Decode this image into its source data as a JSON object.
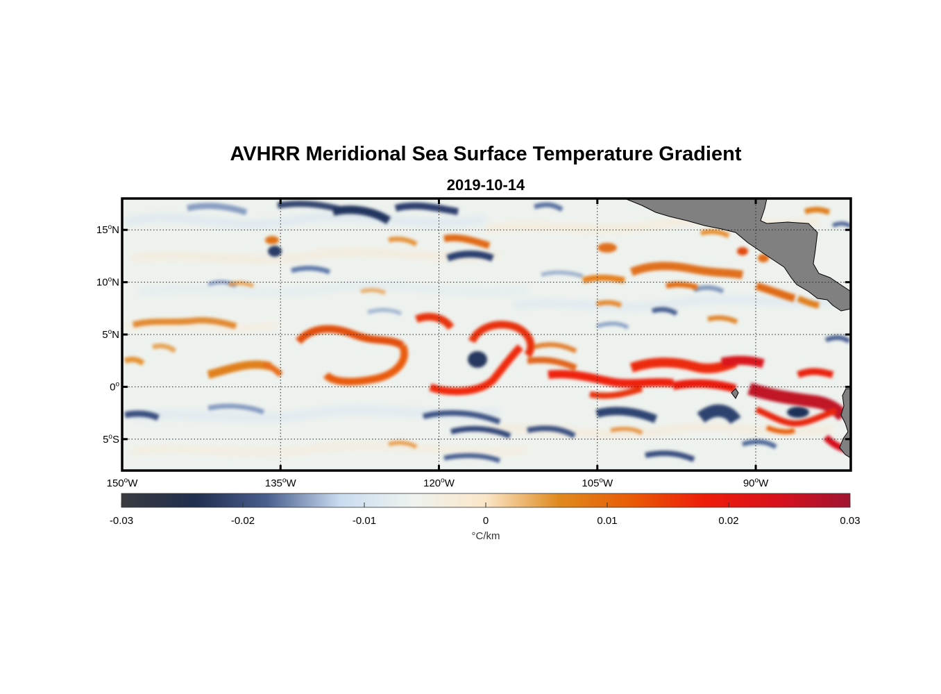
{
  "title": "AVHRR Meridional Sea Surface Temperature Gradient",
  "subtitle": "2019-10-14",
  "map": {
    "lon_range": [
      -150,
      -81
    ],
    "lat_range": [
      -8,
      18
    ],
    "land_color": "#808080",
    "gridlines": "dotted",
    "lat_ticks": [
      {
        "value": 15,
        "num": "15",
        "sup": "o",
        "hem": "N"
      },
      {
        "value": 10,
        "num": "10",
        "sup": "o",
        "hem": "N"
      },
      {
        "value": 5,
        "num": "5",
        "sup": "o",
        "hem": "N"
      },
      {
        "value": 0,
        "num": "0",
        "sup": "o",
        "hem": ""
      },
      {
        "value": -5,
        "num": "5",
        "sup": "o",
        "hem": "S"
      }
    ],
    "lon_ticks": [
      {
        "value": -150,
        "num": "150",
        "sup": "o",
        "hem": "W"
      },
      {
        "value": -135,
        "num": "135",
        "sup": "o",
        "hem": "W"
      },
      {
        "value": -120,
        "num": "120",
        "sup": "o",
        "hem": "W"
      },
      {
        "value": -105,
        "num": "105",
        "sup": "o",
        "hem": "W"
      },
      {
        "value": -90,
        "num": "90",
        "sup": "o",
        "hem": "W"
      }
    ]
  },
  "colorbar": {
    "range": [
      -0.03,
      0.03
    ],
    "ticks": [
      "-0.03",
      "-0.02",
      "-0.01",
      "0",
      "0.01",
      "0.02",
      "0.03"
    ],
    "unit_symbol": "°",
    "unit": "C/km",
    "colors": [
      "#3a3c40",
      "#1f2d4e",
      "#4a5f8e",
      "#c9dcf0",
      "#eef3ef",
      "#fbe6c8",
      "#df8a1e",
      "#e95b06",
      "#ee1c0a",
      "#d8101c",
      "#a01432"
    ]
  },
  "features": [
    {
      "type": "positive",
      "lon": -122.5,
      "lat": 1.8,
      "strength": 0.012
    },
    {
      "type": "positive",
      "lon": -126.5,
      "lat": 4.6,
      "strength": 0.011
    },
    {
      "type": "positive",
      "lon": -117.5,
      "lat": 5.8,
      "strength": 0.015
    },
    {
      "type": "positive",
      "lon": -114.5,
      "lat": 0.2,
      "strength": 0.016
    },
    {
      "type": "positive",
      "lon": -111.5,
      "lat": 5.2,
      "strength": 0.017
    },
    {
      "type": "positive",
      "lon": -103.5,
      "lat": 0.6,
      "strength": 0.02
    },
    {
      "type": "positive",
      "lon": -96.5,
      "lat": 1.2,
      "strength": 0.022
    },
    {
      "type": "positive",
      "lon": -88.5,
      "lat": 1.8,
      "strength": 0.02
    },
    {
      "type": "positive",
      "lon": -85.5,
      "lat": -1.8,
      "strength": 0.028
    },
    {
      "type": "positive",
      "lon": -95.5,
      "lat": 11.5,
      "strength": 0.012
    },
    {
      "type": "positive",
      "lon": -137.5,
      "lat": 1.8,
      "strength": 0.01
    },
    {
      "type": "positive",
      "lon": -143.5,
      "lat": 6.3,
      "strength": 0.009
    },
    {
      "type": "negative",
      "lon": -116.5,
      "lat": 2.5,
      "strength": -0.02
    },
    {
      "type": "negative",
      "lon": -91.5,
      "lat": -2.4,
      "strength": -0.017
    },
    {
      "type": "negative",
      "lon": -133.5,
      "lat": 16.5,
      "strength": -0.016
    },
    {
      "type": "negative",
      "lon": -115.5,
      "lat": 12.3,
      "strength": -0.015
    },
    {
      "type": "negative",
      "lon": -104.5,
      "lat": -2.7,
      "strength": -0.014
    },
    {
      "type": "negative",
      "lon": -145.5,
      "lat": -2.6,
      "strength": -0.012
    }
  ]
}
